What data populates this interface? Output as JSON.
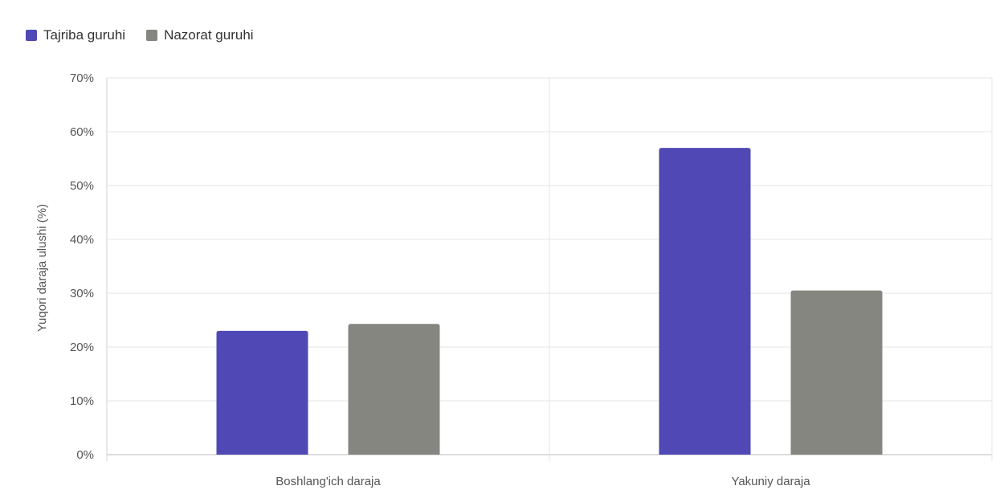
{
  "chart_data": {
    "type": "bar",
    "title": "",
    "xlabel": "",
    "ylabel": "Yuqori daraja ulushi (%)",
    "categories": [
      "Boshlang'ich daraja",
      "Yakuniy daraja"
    ],
    "series": [
      {
        "name": "Tajriba guruhi",
        "values": [
          23,
          57
        ],
        "color": "#5048b5"
      },
      {
        "name": "Nazorat guruhi",
        "values": [
          24.3,
          30.5
        ],
        "color": "#868680"
      }
    ],
    "ylim": [
      0,
      70
    ],
    "yticks": [
      "0%",
      "10%",
      "20%",
      "30%",
      "40%",
      "50%",
      "60%",
      "70%"
    ],
    "grid": true,
    "legend_position": "top-left"
  }
}
